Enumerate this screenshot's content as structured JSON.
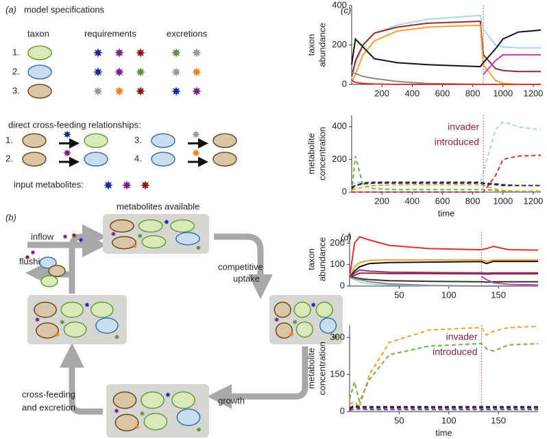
{
  "panel_a": {
    "label": "(a)",
    "title": "model specifications",
    "headers": [
      "taxon",
      "requirements",
      "excretions"
    ],
    "rows": [
      {
        "number": "1.",
        "fill": "#d8eab8",
        "stroke": "#6a9a40",
        "requirements": [
          "#1c2a9c",
          "#7a2088",
          "#8a1a1a"
        ],
        "excretions": [
          "#5e8f3a",
          "#9a9a9a"
        ]
      },
      {
        "number": "2.",
        "fill": "#c8ddf0",
        "stroke": "#3d6fb0",
        "requirements": [
          "#1c2a9c",
          "#7a2088",
          "#5e8f3a"
        ],
        "excretions": [
          "#9a9a9a",
          "#f08020"
        ]
      },
      {
        "number": "3.",
        "fill": "#d9c6a4",
        "stroke": "#6b4a1e",
        "requirements": [
          "#9a9a9a",
          "#f08020",
          "#8a1a1a"
        ],
        "excretions": [
          "#1c2a9c",
          "#7a2088"
        ]
      }
    ],
    "cross_title": "direct cross-feeding relationships:",
    "cross": [
      {
        "number": "1.",
        "source": 2,
        "star": "#1c2a9c",
        "target": 0
      },
      {
        "number": "2.",
        "source": 2,
        "star": "#7a2088",
        "target": 1
      },
      {
        "number": "3.",
        "source": 1,
        "star": "#9a9a9a",
        "target": 2
      },
      {
        "number": "4.",
        "source": 1,
        "star": "#f08020",
        "target": 2
      }
    ],
    "input_label": "input metabolites:",
    "inputs": [
      "#1c2a9c",
      "#7a2088",
      "#8a1a1a"
    ]
  },
  "panel_b": {
    "label": "(b)",
    "inflow": "inflow",
    "flushing": "flushing",
    "available": "metabolites available",
    "uptake": [
      "competitive",
      "uptake"
    ],
    "growth": "growth",
    "excretion": [
      "cross-feeding",
      "and excretion"
    ]
  },
  "chart_data": [
    {
      "type": "line",
      "panel": "(c)",
      "ylabel": [
        "taxon",
        "abundance"
      ],
      "linestyle": "solid",
      "xlim": [
        0,
        1250
      ],
      "xticks": [
        200,
        400,
        600,
        800,
        1000,
        1200
      ],
      "ylim": [
        0,
        400
      ],
      "yticks": [
        0,
        200,
        400
      ],
      "vline": 870,
      "x": [
        0,
        25,
        75,
        150,
        300,
        500,
        850,
        870,
        950,
        1000,
        1100,
        1250
      ],
      "series": [
        {
          "color": "#a8d8e8",
          "values": [
            30,
            100,
            200,
            260,
            300,
            330,
            350,
            280,
            200,
            190,
            185,
            185
          ]
        },
        {
          "color": "#9a2a2a",
          "values": [
            40,
            120,
            200,
            260,
            290,
            310,
            320,
            150,
            80,
            70,
            65,
            65
          ]
        },
        {
          "color": "#f0a030",
          "values": [
            10,
            50,
            150,
            220,
            270,
            290,
            300,
            100,
            20,
            5,
            0,
            0
          ]
        },
        {
          "color": "#111111",
          "values": [
            100,
            230,
            190,
            130,
            110,
            100,
            90,
            110,
            180,
            230,
            265,
            275
          ]
        },
        {
          "color": "#888888",
          "values": [
            60,
            55,
            40,
            30,
            15,
            5,
            0,
            0,
            0,
            0,
            0,
            0
          ]
        },
        {
          "color": "#c040b0",
          "values": [
            null,
            null,
            null,
            null,
            null,
            null,
            null,
            50,
            120,
            150,
            150,
            150
          ]
        },
        {
          "color": "#e03030",
          "values": [
            20,
            10,
            5,
            2,
            0,
            0,
            0,
            0,
            0,
            0,
            0,
            0
          ]
        }
      ]
    },
    {
      "type": "line",
      "ylabel": [
        "metabolite",
        "concentration"
      ],
      "xlabel": "time",
      "linestyle": "dashed",
      "xlim": [
        0,
        1250
      ],
      "xticks": [
        200,
        400,
        600,
        800,
        1000,
        1200
      ],
      "ylim": [
        0,
        470
      ],
      "yticks": [
        0,
        200,
        400
      ],
      "vline": 870,
      "annotation": [
        "invader",
        "introduced"
      ],
      "x": [
        0,
        25,
        75,
        150,
        300,
        500,
        850,
        870,
        950,
        1000,
        1100,
        1250
      ],
      "series": [
        {
          "color": "#a8d8e8",
          "values": [
            40,
            60,
            60,
            60,
            60,
            60,
            60,
            120,
            380,
            430,
            400,
            380
          ]
        },
        {
          "color": "#e03030",
          "values": [
            0,
            0,
            0,
            0,
            0,
            0,
            0,
            0,
            100,
            200,
            220,
            225
          ]
        },
        {
          "color": "#70b040",
          "values": [
            0,
            220,
            40,
            20,
            15,
            15,
            15,
            15,
            10,
            5,
            5,
            5
          ]
        },
        {
          "color": "#1c2060",
          "values": [
            30,
            40,
            55,
            60,
            60,
            60,
            60,
            55,
            50,
            45,
            40,
            40
          ]
        },
        {
          "color": "#f0a030",
          "values": [
            10,
            20,
            30,
            40,
            45,
            45,
            45,
            40,
            20,
            10,
            5,
            5
          ]
        },
        {
          "color": "#333333",
          "values": [
            20,
            40,
            50,
            55,
            55,
            55,
            55,
            50,
            45,
            40,
            40,
            40
          ]
        }
      ]
    },
    {
      "type": "line",
      "panel": "(d)",
      "ylabel": [
        "taxon",
        "abundance"
      ],
      "linestyle": "solid",
      "xlim": [
        0,
        190
      ],
      "xticks": [
        50,
        100,
        150
      ],
      "ylim": [
        0,
        250
      ],
      "yticks": [
        0,
        100,
        200
      ],
      "vline": 133,
      "x": [
        0,
        5,
        10,
        20,
        40,
        80,
        130,
        133,
        138,
        145,
        160,
        190
      ],
      "series": [
        {
          "color": "#e03030",
          "values": [
            40,
            200,
            230,
            215,
            190,
            175,
            170,
            170,
            175,
            185,
            170,
            168
          ]
        },
        {
          "color": "#f0a030",
          "values": [
            40,
            90,
            110,
            120,
            122,
            122,
            122,
            122,
            115,
            122,
            122,
            122
          ]
        },
        {
          "color": "#111111",
          "values": [
            40,
            70,
            90,
            105,
            110,
            112,
            114,
            114,
            105,
            115,
            115,
            115
          ]
        },
        {
          "color": "#7a3a9a",
          "values": [
            40,
            60,
            75,
            70,
            65,
            63,
            62,
            62,
            60,
            62,
            62,
            62
          ]
        },
        {
          "color": "#9a2a2a",
          "values": [
            40,
            50,
            60,
            60,
            58,
            58,
            57,
            57,
            55,
            57,
            57,
            57
          ]
        },
        {
          "color": "#333333",
          "values": [
            40,
            40,
            35,
            30,
            25,
            22,
            20,
            20,
            18,
            20,
            20,
            20
          ]
        },
        {
          "color": "#c040b0",
          "values": [
            null,
            null,
            null,
            null,
            null,
            null,
            null,
            45,
            30,
            15,
            8,
            5
          ]
        },
        {
          "color": "#a8d8e8",
          "values": [
            40,
            30,
            20,
            10,
            5,
            2,
            0,
            0,
            0,
            0,
            0,
            0
          ]
        },
        {
          "color": "#888888",
          "values": [
            40,
            35,
            30,
            20,
            10,
            3,
            0,
            0,
            0,
            0,
            0,
            0
          ]
        }
      ]
    },
    {
      "type": "line",
      "ylabel": [
        "metabolite",
        "concentration"
      ],
      "xlabel": "time",
      "linestyle": "dashed",
      "xlim": [
        0,
        190
      ],
      "xticks": [
        50,
        100,
        150
      ],
      "ylim": [
        0,
        350
      ],
      "yticks": [
        0,
        150,
        300
      ],
      "vline": 133,
      "annotation": [
        "invader",
        "introduced"
      ],
      "x": [
        0,
        5,
        10,
        20,
        40,
        80,
        130,
        133,
        138,
        145,
        160,
        190
      ],
      "series": [
        {
          "color": "#f0a030",
          "values": [
            30,
            40,
            20,
            150,
            280,
            330,
            340,
            340,
            310,
            325,
            340,
            345
          ]
        },
        {
          "color": "#70b040",
          "values": [
            50,
            120,
            40,
            130,
            230,
            265,
            275,
            275,
            255,
            245,
            270,
            275
          ]
        },
        {
          "color": "#1c2060",
          "values": [
            10,
            20,
            15,
            15,
            15,
            15,
            15,
            15,
            15,
            15,
            15,
            15
          ]
        },
        {
          "color": "#333333",
          "values": [
            15,
            25,
            20,
            20,
            20,
            20,
            20,
            20,
            20,
            20,
            20,
            20
          ]
        },
        {
          "color": "#7a3a9a",
          "values": [
            5,
            10,
            10,
            8,
            8,
            8,
            8,
            8,
            8,
            8,
            8,
            8
          ]
        }
      ]
    }
  ]
}
